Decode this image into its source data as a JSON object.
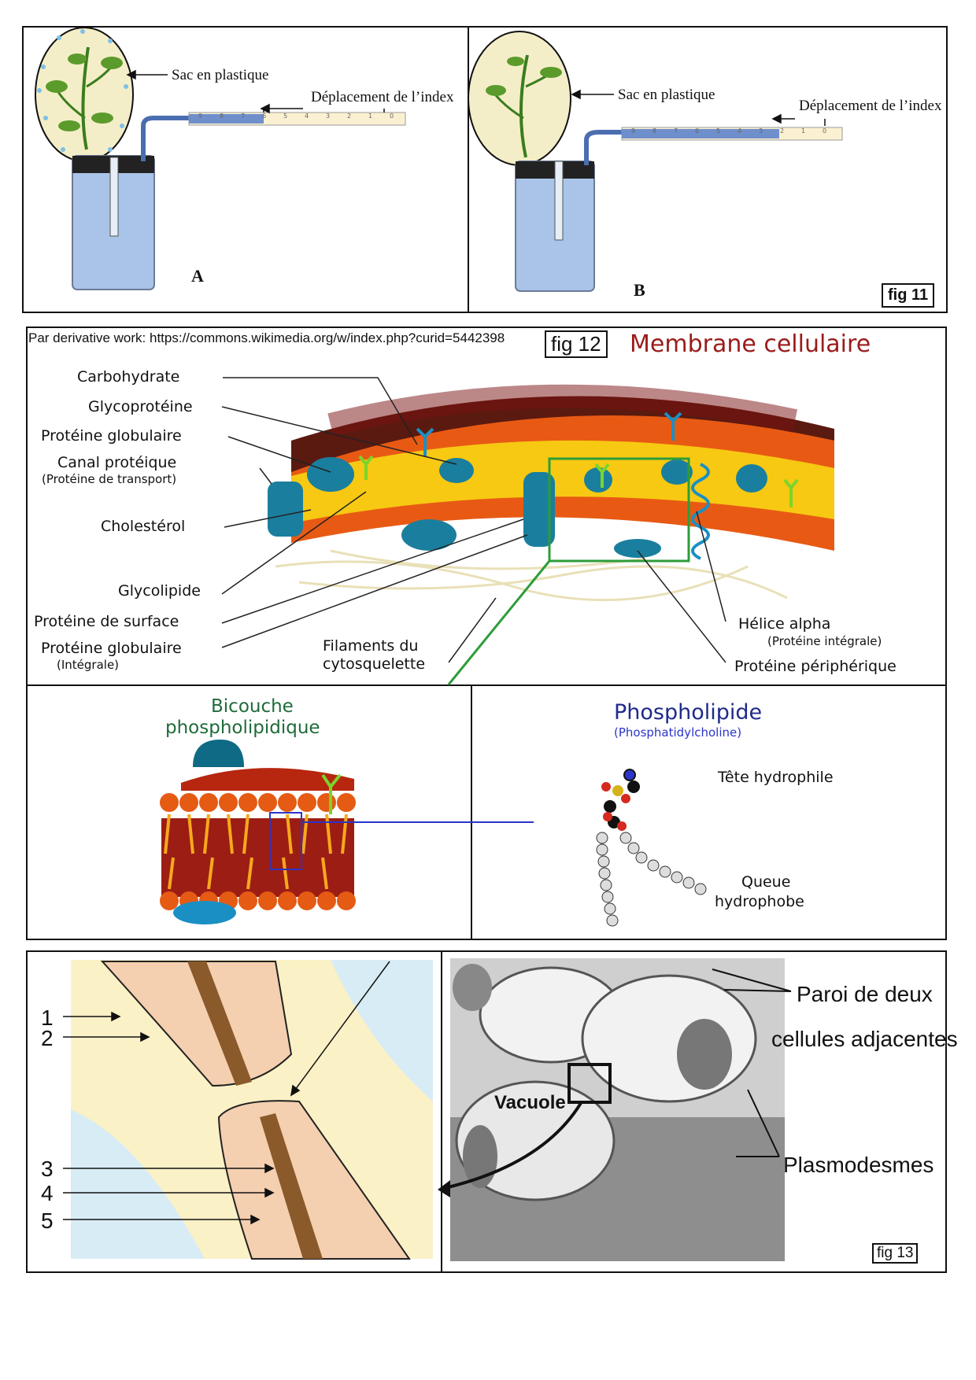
{
  "fig11": {
    "tag": "fig 11",
    "panel_a": {
      "bag_label": "Sac en plastique",
      "index_label": "Déplacement de l’index",
      "letter": "A"
    },
    "panel_b": {
      "bag_label": "Sac en plastique",
      "index_label": "Déplacement de l’index",
      "letter": "B"
    },
    "ruler_ticks": [
      "9",
      "8",
      "7",
      "6",
      "5",
      "4",
      "3",
      "2",
      "1",
      "0"
    ]
  },
  "fig12": {
    "source": "Par derivative work: https://commons.wikimedia.org/w/index.php?curid=5442398",
    "tag": "fig 12",
    "title": "Membrane cellulaire",
    "labels": {
      "carbohydrate": "Carbohydrate",
      "glycoprotein": "Glycoprotéine",
      "globular_protein": "Protéine globulaire",
      "channel_protein": "Canal protéique",
      "channel_protein_sub": "(Protéine de transport)",
      "cholesterol": "Cholestérol",
      "glycolipid": "Glycolipide",
      "surface_protein": "Protéine de surface",
      "globular_integral": "Protéine globulaire",
      "globular_integral_sub": "(Intégrale)",
      "filaments_1": "Filaments du",
      "filaments_2": "cytosquelette",
      "alpha_helix": "Hélice alpha",
      "alpha_helix_sub": "(Protéine intégrale)",
      "peripheral_protein": "Protéine périphérique"
    },
    "bilayer_title_1": "Bicouche",
    "bilayer_title_2": "phospholipidique",
    "phospholipid_title": "Phospholipide",
    "phospholipid_sub": "(Phosphatidylcholine)",
    "hydrophilic_head": "Tête hydrophile",
    "tail_1": "Queue",
    "tail_2": "hydrophobe",
    "colors": {
      "title_red": "#9b1b1b",
      "bilayer_green": "#1f6b3a",
      "phospho_blue": "#1f2a8a",
      "protein_teal": "#1a7f9e"
    }
  },
  "fig13": {
    "tag": "fig 13",
    "numbers": [
      "1",
      "2",
      "3",
      "4",
      "5"
    ],
    "wall_label_1": "Paroi de deux",
    "wall_label_2": "cellules adjacentes",
    "vacuole": "Vacuole",
    "plasmodesmata": "Plasmodesmes"
  }
}
